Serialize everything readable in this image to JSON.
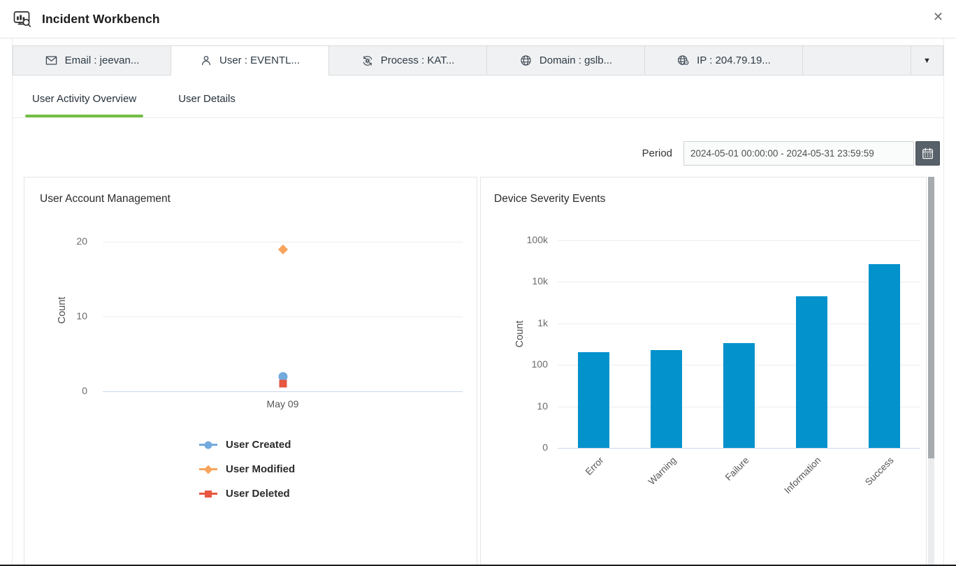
{
  "window": {
    "icon": "incident-workbench-icon",
    "title": "Incident Workbench",
    "close_glyph": "✕"
  },
  "tabbar": {
    "tabs": [
      {
        "icon": "envelope-icon",
        "label": "Email : jeevan...",
        "active": false
      },
      {
        "icon": "user-icon",
        "label": "User : EVENTL...",
        "active": true
      },
      {
        "icon": "process-icon",
        "label": "Process : KAT...",
        "active": false
      },
      {
        "icon": "globe-icon",
        "label": "Domain : gslb...",
        "active": false
      },
      {
        "icon": "ip-globe-icon",
        "label": "IP : 204.79.19...",
        "active": false
      }
    ],
    "overflow_caret_glyph": "▼"
  },
  "subtabs": [
    {
      "label": "User Activity Overview",
      "active": true
    },
    {
      "label": "User Details",
      "active": false
    }
  ],
  "period": {
    "label": "Period",
    "value": "2024-05-01 00:00:00 - 2024-05-31 23:59:59",
    "calendar_icon": "calendar-icon"
  },
  "theme": {
    "accent_green": "#72bf44",
    "bar_blue": "#0492cc",
    "series_blue": "#72aade",
    "series_orange": "#f9a45e",
    "series_red": "#e8573f",
    "calendar_button_bg": "#586069",
    "scrollbar_thumb": "#a6abb0"
  },
  "chart_data": [
    {
      "type": "scatter",
      "title": "User Account Management",
      "x": [
        "May 09"
      ],
      "series": [
        {
          "name": "User Created",
          "marker": "circle",
          "color": "#72aade",
          "values": [
            2
          ]
        },
        {
          "name": "User Modified",
          "marker": "diamond",
          "color": "#f9a45e",
          "values": [
            19
          ]
        },
        {
          "name": "User Deleted",
          "marker": "square",
          "color": "#e8573f",
          "values": [
            1
          ]
        }
      ],
      "xlabel": "",
      "ylabel": "Count",
      "ylim": [
        0,
        20
      ],
      "yticks": [
        0,
        10,
        20
      ],
      "grid": true,
      "legend_position": "bottom-left"
    },
    {
      "type": "bar",
      "title": "Device Severity Events",
      "categories": [
        "Error",
        "Warning",
        "Failure",
        "Information",
        "Success"
      ],
      "values": [
        200,
        230,
        340,
        4500,
        27000
      ],
      "xlabel": "",
      "ylabel": "Count",
      "yscale": "log",
      "yticks": [
        "0",
        "10",
        "100",
        "1k",
        "10k",
        "100k"
      ],
      "grid": true,
      "bar_color": "#0492cc",
      "legend_position": "none"
    }
  ]
}
